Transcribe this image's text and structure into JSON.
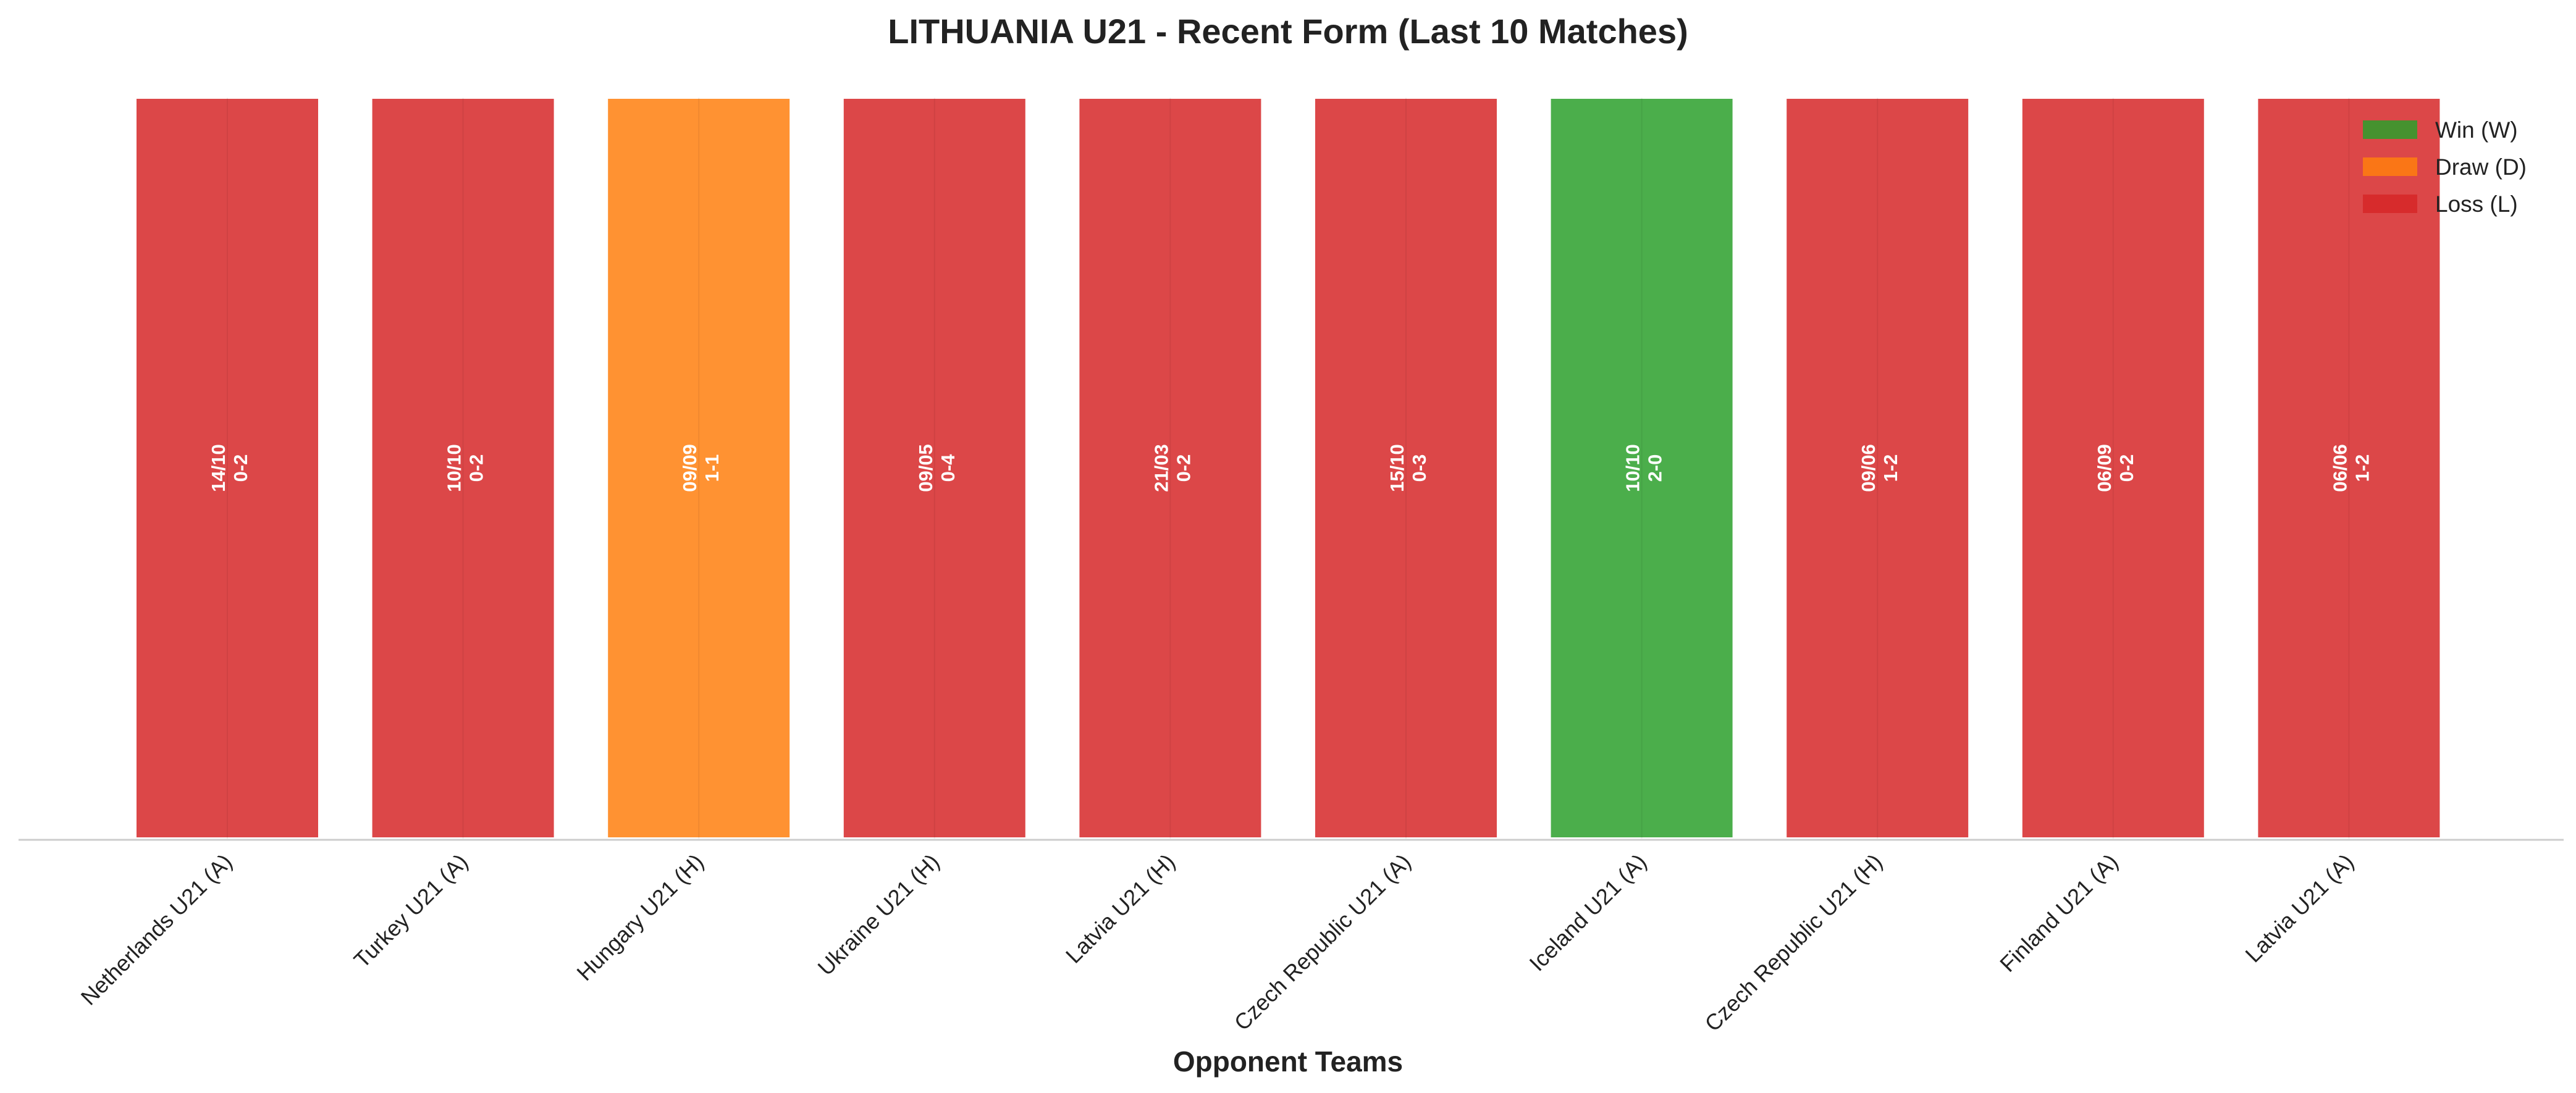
{
  "chart_data": {
    "type": "bar",
    "title": "LITHUANIA U21 - Recent Form (Last 10 Matches)",
    "xlabel": "Opponent Teams",
    "ylabel": "",
    "grid": false,
    "legend_position": "top-right",
    "legend": [
      {
        "key": "W",
        "label": "Win (W)",
        "color": "#2ca02c"
      },
      {
        "key": "D",
        "label": "Draw (D)",
        "color": "#ff7f0e"
      },
      {
        "key": "L",
        "label": "Loss (L)",
        "color": "#d62728"
      }
    ],
    "categories": [
      "Netherlands U21 (A)",
      "Turkey U21 (A)",
      "Hungary U21 (H)",
      "Ukraine U21 (H)",
      "Latvia U21 (H)",
      "Czech Republic U21 (A)",
      "Iceland U21 (A)",
      "Czech Republic U21 (H)",
      "Finland U21 (A)",
      "Latvia U21 (A)"
    ],
    "values": [
      1,
      1,
      1,
      1,
      1,
      1,
      1,
      1,
      1,
      1
    ],
    "results": [
      "L",
      "L",
      "D",
      "L",
      "L",
      "L",
      "W",
      "L",
      "L",
      "L"
    ],
    "dates": [
      "14/10",
      "10/10",
      "09/09",
      "09/05",
      "21/03",
      "15/10",
      "10/10",
      "09/06",
      "06/09",
      "06/06"
    ],
    "scores": [
      "0-2",
      "0-2",
      "1-1",
      "0-4",
      "0-2",
      "0-3",
      "2-0",
      "1-2",
      "0-2",
      "1-2"
    ]
  }
}
